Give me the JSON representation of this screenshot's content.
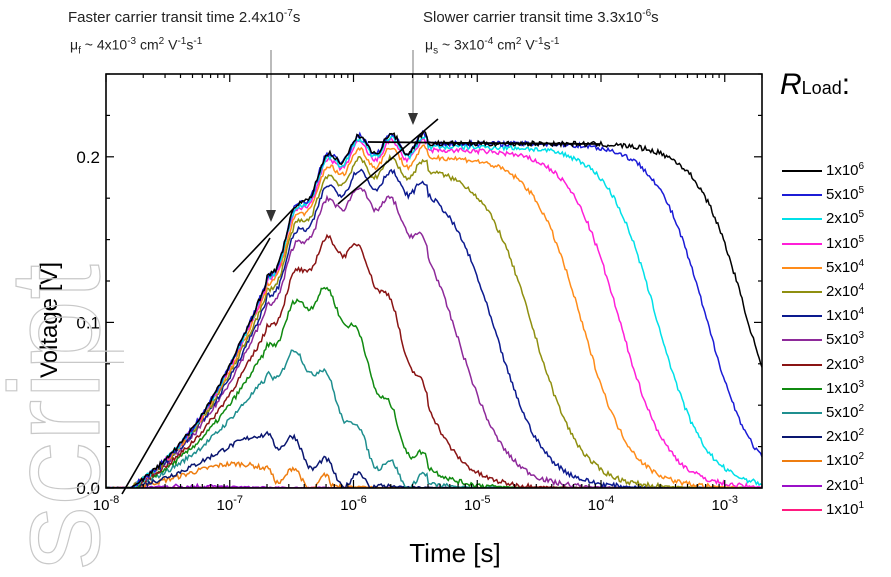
{
  "annotations": {
    "fast_title": "Faster carrier transit time 2.4x10",
    "fast_exp": "-7",
    "fast_unit": "s",
    "fast_mu_sym": "μ",
    "fast_mu_sub": "f",
    "fast_mu_val": " ~ 4x10",
    "fast_mu_exp": "-3",
    "fast_mu_unit": " cm",
    "fast_mu_tail": " V",
    "fast_mu_tail2": "s",
    "slow_title": "Slower carrier transit time 3.3x10",
    "slow_exp": "-6",
    "slow_unit": "s",
    "slow_mu_sym": "μ",
    "slow_mu_sub": "s",
    "slow_mu_val": " ~ 3x10",
    "slow_mu_exp": "-4",
    "slow_mu_unit": " cm",
    "slow_mu_tail": " V",
    "slow_mu_tail2": "s",
    "sq": "2",
    "m1": "-1"
  },
  "legend": {
    "title_main": "R",
    "title_sub": "Load",
    "title_colon": ":"
  },
  "watermark_text": "script",
  "chart_data": {
    "type": "line",
    "xlabel": "Time [s]",
    "ylabel": "Voltage [V]",
    "xscale": "log",
    "xlim": [
      1e-08,
      0.002
    ],
    "ylim": [
      0,
      0.25
    ],
    "x_ticks": [
      {
        "base": "10",
        "exp": "-8",
        "value": 1e-08
      },
      {
        "base": "10",
        "exp": "-7",
        "value": 1e-07
      },
      {
        "base": "10",
        "exp": "-6",
        "value": 1e-06
      },
      {
        "base": "10",
        "exp": "-5",
        "value": 1e-05
      },
      {
        "base": "10",
        "exp": "-4",
        "value": 0.0001
      },
      {
        "base": "10",
        "exp": "-3",
        "value": 0.001
      }
    ],
    "y_ticks": [
      {
        "label": "0.0",
        "value": 0
      },
      {
        "label": "0.1",
        "value": 0.1
      },
      {
        "label": "0.2",
        "value": 0.2
      }
    ],
    "legend_position": "right",
    "series": [
      {
        "name": "1x10",
        "exp": "6",
        "color": "#000000",
        "peak": 0.208,
        "fall": 0.0015,
        "t_peak": 2e-05
      },
      {
        "name": "5x10",
        "exp": "5",
        "color": "#1c1cd6",
        "peak": 0.208,
        "fall": 0.0007,
        "t_peak": 2e-05
      },
      {
        "name": "2x10",
        "exp": "5",
        "color": "#00e0e8",
        "peak": 0.206,
        "fall": 0.00028,
        "t_peak": 1.3e-05
      },
      {
        "name": "1x10",
        "exp": "5",
        "color": "#ff1fd8",
        "peak": 0.204,
        "fall": 0.00014,
        "t_peak": 8e-06
      },
      {
        "name": "5x10",
        "exp": "4",
        "color": "#ff8c1a",
        "peak": 0.2,
        "fall": 7e-05,
        "t_peak": 5e-06
      },
      {
        "name": "2x10",
        "exp": "4",
        "color": "#8f8f10",
        "peak": 0.194,
        "fall": 2.8e-05,
        "t_peak": 3.5e-06
      },
      {
        "name": "1x10",
        "exp": "4",
        "color": "#0c1a8f",
        "peak": 0.188,
        "fall": 1.4e-05,
        "t_peak": 2e-06
      },
      {
        "name": "5x10",
        "exp": "3",
        "color": "#8e2a9a",
        "peak": 0.18,
        "fall": 7e-06,
        "t_peak": 1.2e-06
      },
      {
        "name": "2x10",
        "exp": "3",
        "color": "#8a1414",
        "peak": 0.16,
        "fall": 2.8e-06,
        "t_peak": 7e-07
      },
      {
        "name": "1x10",
        "exp": "3",
        "color": "#108a10",
        "peak": 0.142,
        "fall": 1.4e-06,
        "t_peak": 6e-07
      },
      {
        "name": "5x10",
        "exp": "2",
        "color": "#1f8f8f",
        "peak": 0.118,
        "fall": 7e-07,
        "t_peak": 4e-07
      },
      {
        "name": "2x10",
        "exp": "2",
        "color": "#0a1670",
        "peak": 0.078,
        "fall": 2.8e-07,
        "t_peak": 2.4e-07
      },
      {
        "name": "1x10",
        "exp": "2",
        "color": "#ee7d10",
        "peak": 0.06,
        "fall": 1.4e-07,
        "t_peak": 2.2e-07
      },
      {
        "name": "2x10",
        "exp": "1",
        "color": "#9a10c8",
        "peak": 0.018,
        "fall": 4e-08,
        "t_peak": 2e-07
      },
      {
        "name": "1x10",
        "exp": "1",
        "color": "#ff1a80",
        "peak": 0.011,
        "fall": 2e-08,
        "t_peak": 2e-07
      }
    ]
  }
}
